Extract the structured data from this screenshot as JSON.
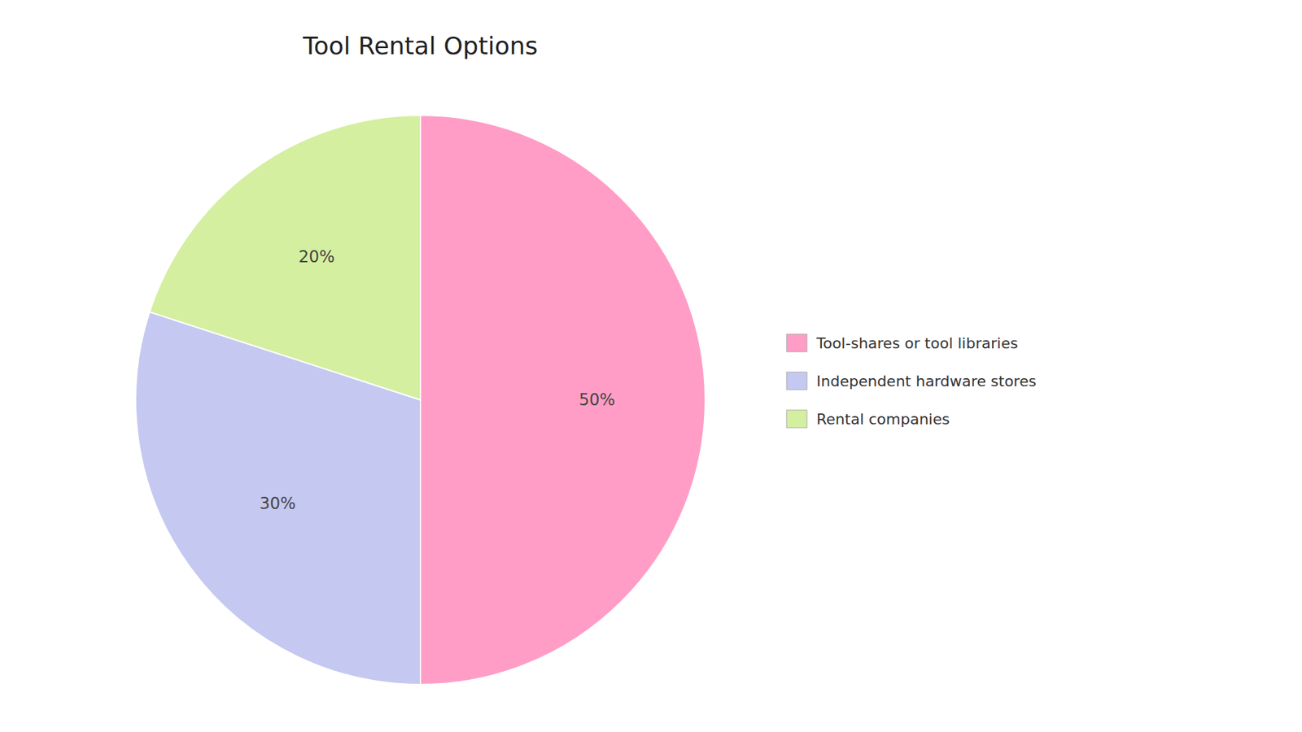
{
  "chart_data": {
    "type": "pie",
    "title": "Tool Rental Options",
    "categories": [
      "Tool-shares or tool libraries",
      "Independent hardware stores",
      "Rental companies"
    ],
    "values": [
      50,
      30,
      20
    ],
    "value_labels": [
      "50%",
      "30%",
      "20%"
    ],
    "colors": [
      "#FF9DC6",
      "#C5C8F0",
      "#D4EFA0"
    ],
    "data_labels": true,
    "legend": "right"
  }
}
